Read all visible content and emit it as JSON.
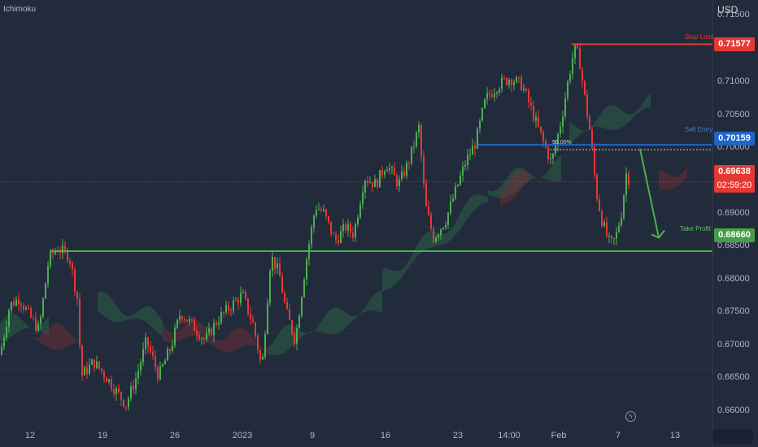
{
  "indicator": "Ichimoku",
  "currency": "USD",
  "colors": {
    "background": "#222b3b",
    "grid": "#2d3646",
    "bull": "#4caf50",
    "bear": "#e53935",
    "stop_loss": "#e53935",
    "sell_entry": "#1e66c8",
    "take_profit": "#4caf50",
    "current_price": "#e53935"
  },
  "levels": {
    "stop_loss": {
      "label": "Stop Loss",
      "value": "0.71577"
    },
    "sell_entry": {
      "label": "Sell Entry",
      "value": "0.70159"
    },
    "take_profit": {
      "label": "Take Profit",
      "value": "0.68660"
    },
    "current": {
      "value": "0.69638",
      "countdown": "02:59:20"
    },
    "fib": "50.00%"
  },
  "chart_data": {
    "type": "candlestick",
    "y_axis": {
      "ticks": [
        "0.71500",
        "0.71000",
        "0.70500",
        "0.70000",
        "0.69500",
        "0.69000",
        "0.68500",
        "0.68000",
        "0.67500",
        "0.67000",
        "0.66500",
        "0.66000"
      ],
      "range": [
        0.659,
        0.722
      ]
    },
    "x_axis": {
      "ticks": [
        "12",
        "19",
        "26",
        "2023",
        "9",
        "16",
        "23",
        "14:00",
        "Feb",
        "7",
        "13"
      ]
    },
    "grid": false,
    "price_path": [
      [
        0,
        0.672
      ],
      [
        12,
        0.679
      ],
      [
        24,
        0.68
      ],
      [
        36,
        0.6775
      ],
      [
        48,
        0.6755
      ],
      [
        60,
        0.6855
      ],
      [
        70,
        0.687
      ],
      [
        85,
        0.686
      ],
      [
        95,
        0.68
      ],
      [
        100,
        0.669
      ],
      [
        115,
        0.671
      ],
      [
        130,
        0.669
      ],
      [
        142,
        0.667
      ],
      [
        155,
        0.665
      ],
      [
        168,
        0.669
      ],
      [
        180,
        0.674
      ],
      [
        195,
        0.669
      ],
      [
        210,
        0.673
      ],
      [
        222,
        0.678
      ],
      [
        238,
        0.676
      ],
      [
        252,
        0.674
      ],
      [
        268,
        0.677
      ],
      [
        285,
        0.679
      ],
      [
        298,
        0.6805
      ],
      [
        312,
        0.676
      ],
      [
        322,
        0.67
      ],
      [
        333,
        0.686
      ],
      [
        343,
        0.6835
      ],
      [
        352,
        0.678
      ],
      [
        363,
        0.674
      ],
      [
        376,
        0.685
      ],
      [
        388,
        0.693
      ],
      [
        398,
        0.692
      ],
      [
        412,
        0.688
      ],
      [
        425,
        0.69
      ],
      [
        435,
        0.689
      ],
      [
        448,
        0.697
      ],
      [
        462,
        0.696
      ],
      [
        475,
        0.699
      ],
      [
        490,
        0.696
      ],
      [
        502,
        0.699
      ],
      [
        515,
        0.704
      ],
      [
        523,
        0.693
      ],
      [
        533,
        0.6885
      ],
      [
        548,
        0.691
      ],
      [
        560,
        0.695
      ],
      [
        572,
        0.699
      ],
      [
        585,
        0.702
      ],
      [
        597,
        0.708
      ],
      [
        612,
        0.71
      ],
      [
        627,
        0.711
      ],
      [
        642,
        0.71
      ],
      [
        655,
        0.706
      ],
      [
        668,
        0.702
      ],
      [
        678,
        0.699
      ],
      [
        690,
        0.705
      ],
      [
        699,
        0.711
      ],
      [
        706,
        0.715
      ],
      [
        712,
        0.714
      ],
      [
        718,
        0.709
      ],
      [
        726,
        0.703
      ],
      [
        733,
        0.695
      ],
      [
        740,
        0.691
      ],
      [
        748,
        0.688
      ],
      [
        753,
        0.6875
      ],
      [
        758,
        0.689
      ],
      [
        764,
        0.692
      ],
      [
        770,
        0.6975
      ],
      [
        775,
        0.6963
      ]
    ],
    "projection": {
      "from": 0.701,
      "to": 0.6885
    }
  }
}
